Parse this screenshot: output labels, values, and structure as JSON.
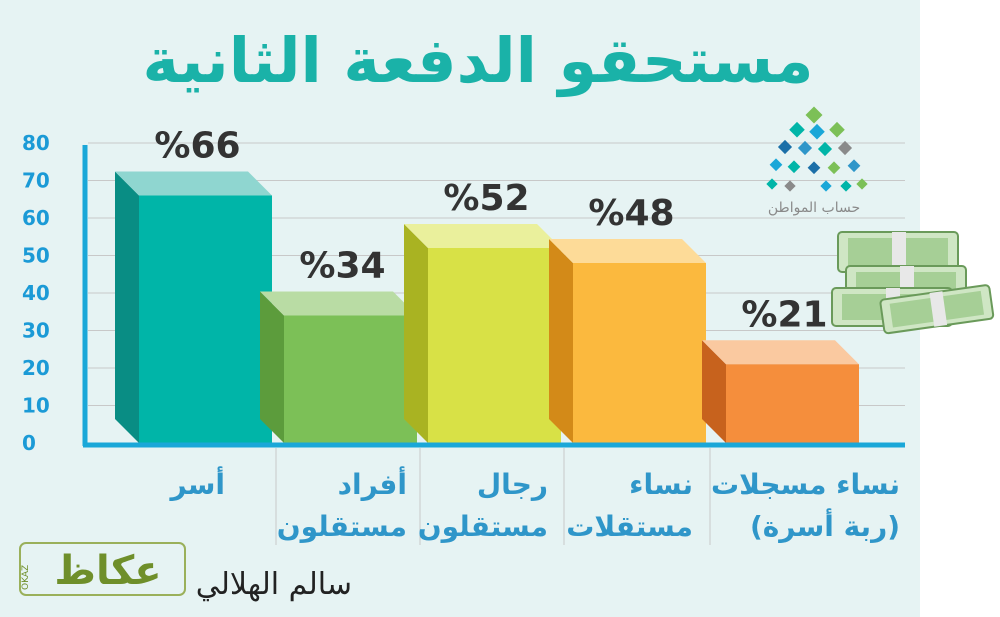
{
  "title": "مستحقو الدفعة الثانية",
  "logo": {
    "caption": "حساب المواطن"
  },
  "credit": {
    "author": "سالم الهلالي",
    "brand": "عكاظ",
    "brand_latin": "OKAZ"
  },
  "colors": {
    "title": "#1ab2a8",
    "axis": "#1aa7d8",
    "tick": "#1b9ad6",
    "category_text": "#2f96c9",
    "value_text": "#333333",
    "grid": "#c8c8c8",
    "background": "#e6f3f3"
  },
  "chart_data": {
    "type": "bar",
    "title": "مستحقو الدفعة الثانية",
    "categories": [
      "أسر",
      "أفراد مستقلون",
      "رجال مستقلون",
      "نساء مستقلات",
      "نساء مسجلات (ربة أسرة)"
    ],
    "category_lines": [
      [
        "أسر"
      ],
      [
        "أفراد",
        "مستقلون"
      ],
      [
        "رجال",
        "مستقلون"
      ],
      [
        "نساء",
        "مستقلات"
      ],
      [
        "نساء مسجلات",
        "(ربة أسرة)"
      ]
    ],
    "values": [
      66,
      34,
      52,
      48,
      21
    ],
    "value_labels": [
      "%66",
      "%34",
      "%52",
      "%48",
      "%21"
    ],
    "bar_colors": [
      {
        "front": "#00b5a8",
        "top": "#8fd6d0",
        "side": "#098d84"
      },
      {
        "front": "#7cc057",
        "top": "#b9dca4",
        "side": "#5c9c3c"
      },
      {
        "front": "#d8e146",
        "top": "#eaf09c",
        "side": "#a9b322"
      },
      {
        "front": "#fbb93e",
        "top": "#fddb98",
        "side": "#d38a18"
      },
      {
        "front": "#f58e3c",
        "top": "#fac9a0",
        "side": "#c7621d"
      }
    ],
    "yticks": [
      0,
      10,
      20,
      30,
      40,
      50,
      60,
      70,
      80
    ],
    "ylim": [
      0,
      80
    ],
    "grid": true,
    "xlabel": "",
    "ylabel": ""
  }
}
